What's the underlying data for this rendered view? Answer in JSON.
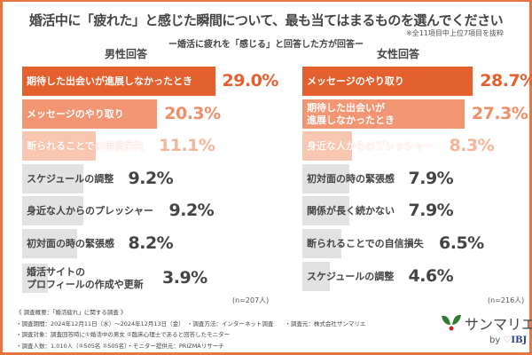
{
  "header": {
    "title": "婚活中に「疲れた」と感じた瞬間について、最も当てはまるものを選んでください",
    "note": "※全11項目中上位7項目を抜粋",
    "subtitle": "ー婚活に疲れを「感じる」と回答した方が回答ー"
  },
  "colors": {
    "rank1": "#e5602f",
    "rank2": "#f29572",
    "rank3": "#f9c6b2",
    "other": "#e2e2e2",
    "rank1_text": "#e5602f",
    "rank2_text": "#ef8f69",
    "rank3_text": "#f6b49a",
    "other_text": "#444444",
    "frame": "#e8743f"
  },
  "chart_data": [
    {
      "type": "bar",
      "orientation": "horizontal",
      "title": "男性回答",
      "unit": "%",
      "n_label": "(n=207人)",
      "categories": [
        "期待した出会いが進展しなかったとき",
        "メッセージのやり取り",
        "断られることでの自信損失",
        "スケジュールの調整",
        "身近な人からのプレッシャー",
        "初対面の時の緊張感",
        "婚活サイトの\nプロフィールの作成や更新"
      ],
      "values": [
        29.0,
        20.3,
        11.1,
        9.2,
        9.2,
        8.2,
        3.9
      ],
      "labels": [
        "29.0%",
        "20.3%",
        "11.1%",
        "9.2%",
        "9.2%",
        "8.2%",
        "3.9%"
      ]
    },
    {
      "type": "bar",
      "orientation": "horizontal",
      "title": "女性回答",
      "unit": "%",
      "n_label": "(n=216人)",
      "categories": [
        "メッセージのやり取り",
        "期待した出会いが\n進展しなかったとき",
        "身近な人からのプレッシャー",
        "初対面の時の緊張感",
        "関係が長く続かない",
        "断られることでの自信損失",
        "スケジュールの調整"
      ],
      "values": [
        28.7,
        27.3,
        8.3,
        7.9,
        7.9,
        6.5,
        4.6
      ],
      "labels": [
        "28.7%",
        "27.3%",
        "8.3%",
        "7.9%",
        "7.9%",
        "6.5%",
        "4.6%"
      ]
    }
  ],
  "footer": {
    "lines": [
      "《 調査概要：「婚活疲れ」に関する調査 》",
      "・調査期間：2024年12月11日（水）～2024年12月13日（金）　・調査方法：インターネット調査　　・調査元：株式会社サンマリエ",
      "・調査対象：調査回答時に①婚活中の男女 ②臨床心理士であると回答したモニター",
      "・調査人数：1,010人（①505名 ②505名）・モニター提供元：PRIZMAリサーチ"
    ]
  },
  "logo": {
    "name": "サンマリエ",
    "by": "by",
    "brand": "IBJ"
  }
}
